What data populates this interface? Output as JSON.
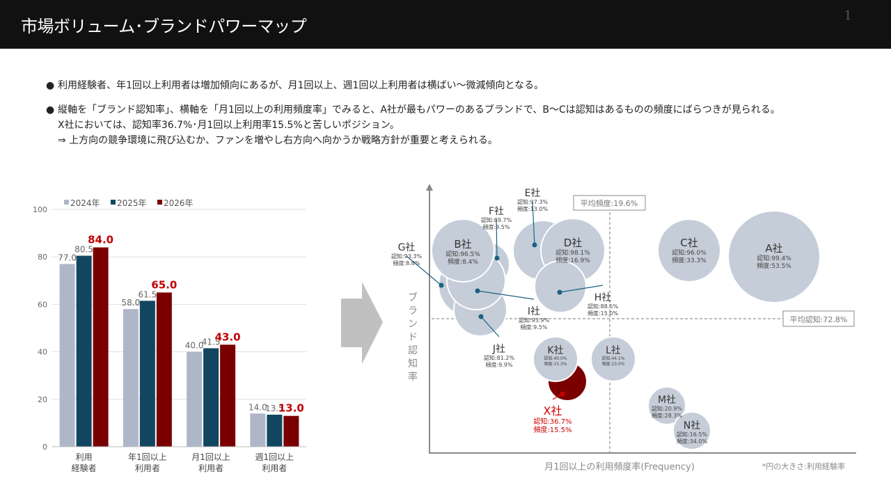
{
  "header": {
    "title": "市場ボリューム･ブランドパワーマップ",
    "page_number": "1"
  },
  "bullets": [
    {
      "lines": [
        "利用経験者、年1回以上利用者は増加傾向にあるが、月1回以上、週1回以上利用者は横ばい～微減傾向となる。"
      ]
    },
    {
      "lines": [
        "縦軸を「ブランド認知率」、横軸を「月1回以上の利用頻度率」でみると、A社が最もパワーのあるブランドで、B～Cは認知はあるものの頻度にばらつきが見られる。",
        "X社においては、認知率36.7%･月1回以上利用率15.5%と苦しいポジション。",
        "⇒ 上方向の競争環境に飛び込むか、ファンを増やし右方向へ向かうか戦略方針が重要と考えられる。"
      ]
    }
  ],
  "bullet_marker": "●",
  "chart_data": [
    {
      "type": "bar",
      "categories": [
        "利用\n経験者",
        "年1回以上\n利用者",
        "月1回以上\n利用者",
        "週1回以上\n利用者"
      ],
      "series": [
        {
          "name": "2024年",
          "color": "#adb7c8",
          "values": [
            77.0,
            58.0,
            40.0,
            14.0
          ]
        },
        {
          "name": "2025年",
          "color": "#124660",
          "values": [
            80.5,
            61.5,
            41.5,
            13.5
          ]
        },
        {
          "name": "2026年",
          "color": "#7a0000",
          "values": [
            84.0,
            65.0,
            43.0,
            13.0
          ]
        }
      ],
      "ylim": [
        0,
        100
      ],
      "yticks": [
        "0",
        "20",
        "40",
        "60",
        "80",
        "100"
      ],
      "legend": "top",
      "grid": true
    },
    {
      "type": "scatter",
      "xlabel": "月1回以上の利用頻度率(Frequency)",
      "ylabel": "ブランド認知率",
      "note": "*円の大きさ:利用経験率",
      "avg_frequency_label": "平均頻度:19.6%",
      "avg_awareness_label": "平均認知:72.8%",
      "points": [
        {
          "name": "A社",
          "awareness": "認知:99.4%",
          "frequency": "頻度:53.5%"
        },
        {
          "name": "B社",
          "awareness": "認知:96.5%",
          "frequency": "頻度:8.4%"
        },
        {
          "name": "C社",
          "awareness": "認知:96.0%",
          "frequency": "頻度:33.3%"
        },
        {
          "name": "D社",
          "awareness": "認知:98.1%",
          "frequency": "頻度:16.9%"
        },
        {
          "name": "E社",
          "awareness": "認知:97.3%",
          "frequency": "頻度:13.0%"
        },
        {
          "name": "F社",
          "awareness": "認知:89.7%",
          "frequency": "頻度:9.5%"
        },
        {
          "name": "G社",
          "awareness": "認知:93.3%",
          "frequency": "頻度:8.8%"
        },
        {
          "name": "H社",
          "awareness": "認知:88.5%",
          "frequency": "頻度:15.0%"
        },
        {
          "name": "I社",
          "awareness": "認知:93.9%",
          "frequency": "頻度:9.5%"
        },
        {
          "name": "J社",
          "awareness": "認知:81.2%",
          "frequency": "頻度:9.9%"
        },
        {
          "name": "K社",
          "awareness": "認知:40.0%",
          "frequency": "頻度:15.3%"
        },
        {
          "name": "L社",
          "awareness": "認知:44.1%",
          "frequency": "頻度:23.0%"
        },
        {
          "name": "M社",
          "awareness": "認知:20.9%",
          "frequency": "頻度:28.3%"
        },
        {
          "name": "N社",
          "awareness": "認知:16.5%",
          "frequency": "頻度:34.0%"
        },
        {
          "name": "X社",
          "awareness": "認知:36.7%",
          "frequency": "頻度:15.5%",
          "highlight": true
        }
      ],
      "colors": {
        "bubble": "#c5cdd9",
        "highlight": "#7a0000",
        "highlight_text": "#cc0000",
        "leader": "#1a6080"
      }
    }
  ]
}
